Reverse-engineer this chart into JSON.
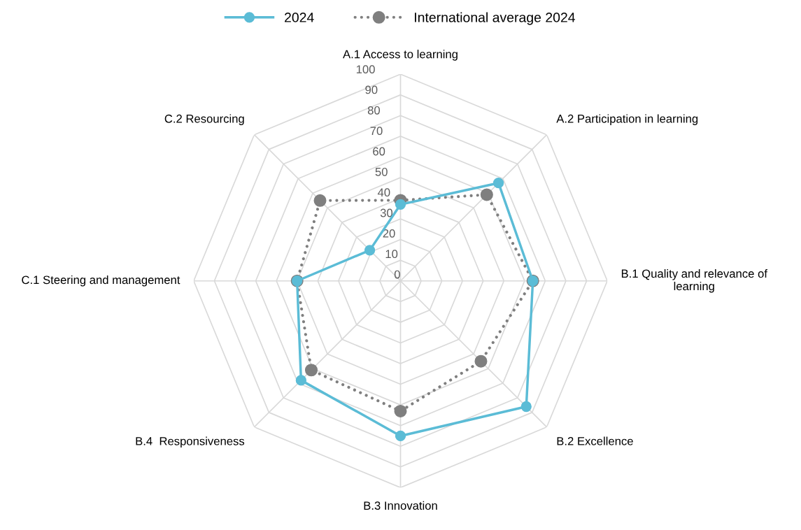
{
  "chart_data": {
    "type": "radar",
    "categories": [
      "A.1 Access to learning",
      "A.2 Participation in learning",
      "B.1 Quality and relevance of\nlearning",
      "B.2 Excellence",
      "B.3 Innovation",
      "B.4  Responsiveness",
      "C.1 Steering and management",
      "C.2 Resourcing"
    ],
    "series": [
      {
        "name": "2024",
        "color": "#5bbcd6",
        "values": [
          37,
          67,
          64,
          86,
          75,
          68,
          50,
          21
        ],
        "line_style": "solid",
        "marker": "circle"
      },
      {
        "name": "International average 2024",
        "color": "#7f7f7f",
        "values": [
          39,
          59,
          64,
          55,
          63,
          61,
          50,
          55
        ],
        "line_style": "dotted",
        "marker": "circle"
      }
    ],
    "ylim": [
      0,
      100
    ],
    "yticks": [
      0,
      10,
      20,
      30,
      40,
      50,
      60,
      70,
      80,
      90,
      100
    ],
    "grid": true,
    "legend": "top"
  }
}
